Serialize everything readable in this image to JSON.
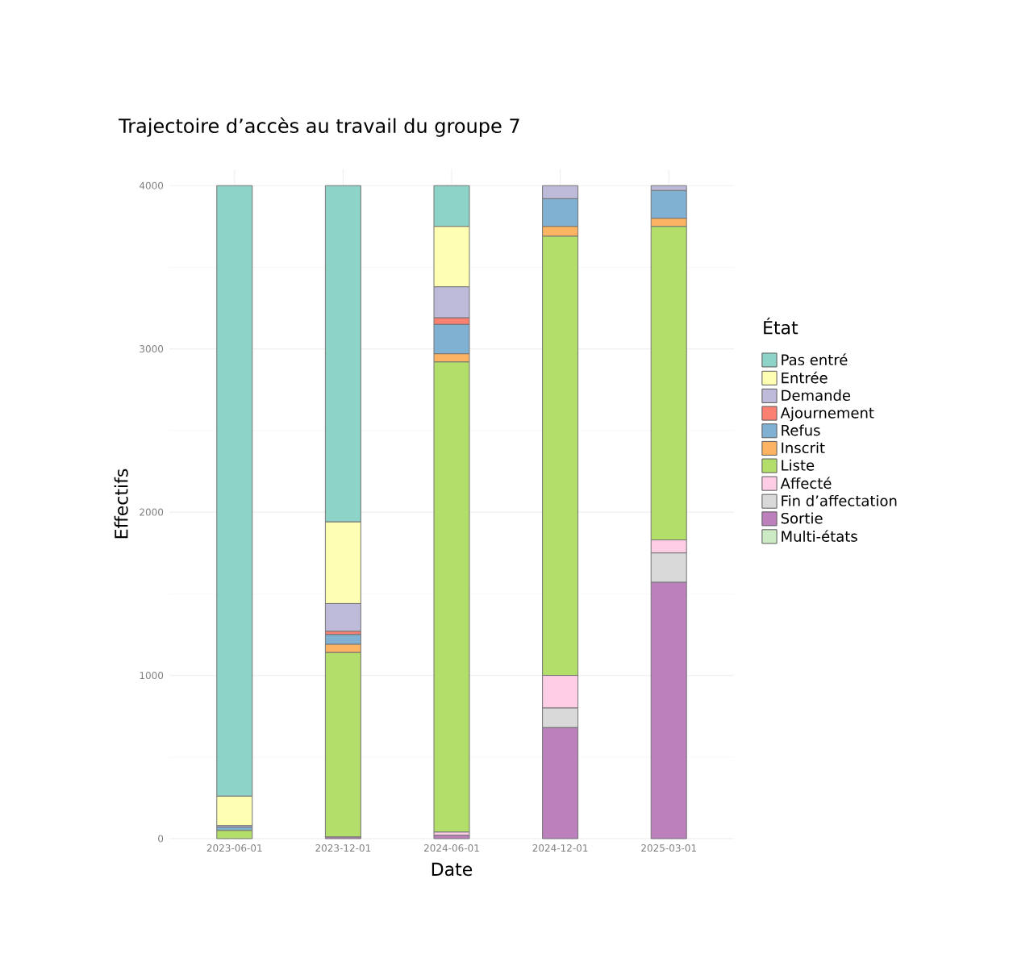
{
  "chart_data": {
    "type": "bar",
    "stacked": true,
    "title": "Trajectoire d’accès au travail du groupe 7",
    "xlabel": "Date",
    "ylabel": "Effectifs",
    "legend_title": "État",
    "legend": "right",
    "grid": true,
    "categories": [
      "2023-06-01",
      "2023-12-01",
      "2024-06-01",
      "2024-12-01",
      "2025-03-01"
    ],
    "ylim": [
      0,
      4100
    ],
    "yticks": [
      0,
      1000,
      2000,
      3000,
      4000
    ],
    "series": [
      {
        "name": "Multi-états",
        "color": "#ccebc5",
        "values": [
          0,
          0,
          0,
          0,
          0
        ]
      },
      {
        "name": "Sortie",
        "color": "#bc80bd",
        "values": [
          0,
          10,
          20,
          680,
          1570
        ]
      },
      {
        "name": "Fin d’affectation",
        "color": "#d9d9d9",
        "values": [
          0,
          0,
          0,
          120,
          180
        ]
      },
      {
        "name": "Affecté",
        "color": "#fccde5",
        "values": [
          0,
          0,
          20,
          200,
          80
        ]
      },
      {
        "name": "Liste",
        "color": "#b3de69",
        "values": [
          50,
          1130,
          2880,
          2690,
          1920
        ]
      },
      {
        "name": "Inscrit",
        "color": "#fdb462",
        "values": [
          0,
          50,
          50,
          60,
          50
        ]
      },
      {
        "name": "Refus",
        "color": "#80b1d3",
        "values": [
          20,
          60,
          180,
          170,
          170
        ]
      },
      {
        "name": "Ajournement",
        "color": "#fb8072",
        "values": [
          0,
          20,
          40,
          0,
          0
        ]
      },
      {
        "name": "Demande",
        "color": "#bebada",
        "values": [
          10,
          170,
          190,
          80,
          30
        ]
      },
      {
        "name": "Entrée",
        "color": "#ffffb3",
        "values": [
          180,
          500,
          370,
          0,
          0
        ]
      },
      {
        "name": "Pas entré",
        "color": "#8dd3c7",
        "values": [
          3740,
          2060,
          250,
          0,
          0
        ]
      }
    ]
  }
}
